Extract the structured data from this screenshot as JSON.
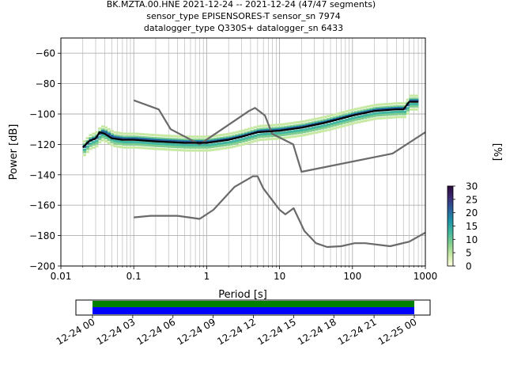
{
  "title": {
    "line1": "BK.MZTA.00.HNE   2021-12-24 -- 2021-12-24  (47/47 segments)",
    "line2": "sensor_type EPISENSORES-T sensor_sn 7974",
    "line3": "datalogger_type Q330S+ datalogger_sn 6433"
  },
  "chart_data": [
    {
      "type": "line",
      "xlabel": "Period [s]",
      "ylabel": "Power [dB]",
      "xscale": "log",
      "xlim": [
        0.01,
        1000
      ],
      "ylim": [
        -200,
        -50
      ],
      "xticks": [
        {
          "v": 0.01,
          "label": "0.01"
        },
        {
          "v": 0.1,
          "label": "0.1"
        },
        {
          "v": 1,
          "label": "1"
        },
        {
          "v": 10,
          "label": "10"
        },
        {
          "v": 100,
          "label": "100"
        },
        {
          "v": 1000,
          "label": "1000"
        }
      ],
      "yticks": [
        {
          "v": -60,
          "label": "−60"
        },
        {
          "v": -80,
          "label": "−80"
        },
        {
          "v": -100,
          "label": "−100"
        },
        {
          "v": -120,
          "label": "−120"
        },
        {
          "v": -140,
          "label": "−140"
        },
        {
          "v": -160,
          "label": "−160"
        },
        {
          "v": -180,
          "label": "−180"
        },
        {
          "v": -200,
          "label": "−200"
        }
      ],
      "grid": true,
      "colorbar": {
        "label": "[%]",
        "min": 0,
        "max": 30,
        "ticks": [
          {
            "v": 0,
            "label": "0"
          },
          {
            "v": 5,
            "label": "5"
          },
          {
            "v": 10,
            "label": "10"
          },
          {
            "v": 15,
            "label": "15"
          },
          {
            "v": 20,
            "label": "20"
          },
          {
            "v": 25,
            "label": "25"
          },
          {
            "v": 30,
            "label": "30"
          }
        ],
        "colors": [
          "#ffffe0",
          "#c7e9a3",
          "#7fcd8f",
          "#41b6a0",
          "#1d91a6",
          "#2c5d9a",
          "#3b2a74",
          "#2a0a3a"
        ]
      },
      "series": [
        {
          "role": "mean",
          "color": "#000000",
          "points": [
            [
              0.02,
              -122
            ],
            [
              0.024,
              -118
            ],
            [
              0.03,
              -116
            ],
            [
              0.034,
              -112
            ],
            [
              0.04,
              -113
            ],
            [
              0.05,
              -116
            ],
            [
              0.07,
              -117
            ],
            [
              0.1,
              -117
            ],
            [
              0.2,
              -118
            ],
            [
              0.5,
              -119
            ],
            [
              1,
              -119
            ],
            [
              2,
              -117
            ],
            [
              3,
              -115
            ],
            [
              5,
              -112
            ],
            [
              10,
              -111
            ],
            [
              20,
              -109
            ],
            [
              40,
              -106
            ],
            [
              70,
              -103
            ],
            [
              100,
              -101
            ],
            [
              200,
              -98
            ],
            [
              400,
              -97
            ],
            [
              500,
              -97
            ],
            [
              600,
              -92
            ],
            [
              800,
              -92
            ]
          ]
        },
        {
          "role": "high-noise-model",
          "color": "#6a6a6a",
          "points": [
            [
              0.1,
              -91
            ],
            [
              0.22,
              -97
            ],
            [
              0.32,
              -110
            ],
            [
              0.8,
              -120
            ],
            [
              3.8,
              -98
            ],
            [
              4.6,
              -96
            ],
            [
              6.3,
              -101
            ],
            [
              7.9,
              -113
            ],
            [
              15.4,
              -120
            ],
            [
              20,
              -138
            ],
            [
              354.8,
              -126
            ],
            [
              1000,
              -112
            ]
          ]
        },
        {
          "role": "low-noise-model",
          "color": "#6a6a6a",
          "points": [
            [
              0.1,
              -168
            ],
            [
              0.17,
              -167
            ],
            [
              0.4,
              -167
            ],
            [
              0.8,
              -169
            ],
            [
              1.24,
              -163
            ],
            [
              2.4,
              -148
            ],
            [
              4.3,
              -141
            ],
            [
              5,
              -141
            ],
            [
              6,
              -149
            ],
            [
              10,
              -163
            ],
            [
              12,
              -166
            ],
            [
              15.6,
              -162
            ],
            [
              21.9,
              -177
            ],
            [
              31.6,
              -185
            ],
            [
              45,
              -187.5
            ],
            [
              70,
              -187
            ],
            [
              107,
              -185
            ],
            [
              150,
              -185
            ],
            [
              328,
              -187
            ],
            [
              600,
              -184
            ],
            [
              1000,
              -178
            ]
          ]
        }
      ],
      "density_bands": [
        {
          "color": "#c7e9a3",
          "offset": -5
        },
        {
          "color": "#c7e9a3",
          "offset": 4
        },
        {
          "color": "#7fcd8f",
          "offset": -3
        },
        {
          "color": "#7fcd8f",
          "offset": 2
        },
        {
          "color": "#41b6a0",
          "offset": -1.5
        },
        {
          "color": "#1d91a6",
          "offset": 1
        },
        {
          "color": "#2c5d9a",
          "offset": 0.5
        }
      ]
    },
    {
      "type": "timeline",
      "xticks": [
        "12-24 00",
        "12-24 03",
        "12-24 06",
        "12-24 09",
        "12-24 12",
        "12-24 15",
        "12-24 18",
        "12-24 21",
        "12-25 00"
      ],
      "coverage_colors": [
        "#008000",
        "#0000ff"
      ],
      "coverage_start": 0,
      "coverage_end": 1
    }
  ]
}
